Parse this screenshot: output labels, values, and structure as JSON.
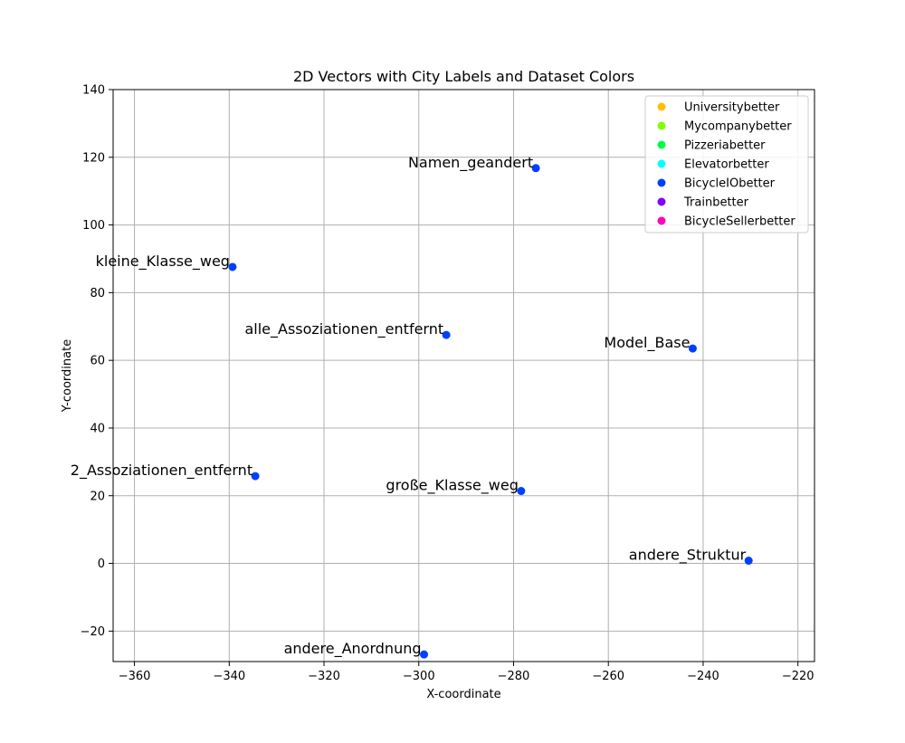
{
  "chart_data": {
    "type": "scatter",
    "title": "2D Vectors with City Labels and Dataset Colors",
    "xlabel": "X-coordinate",
    "ylabel": "Y-coordinate",
    "xlim": [
      -364.5,
      -216.5
    ],
    "ylim": [
      -29,
      140
    ],
    "xticks": [
      -360,
      -340,
      -320,
      -300,
      -280,
      -260,
      -240,
      -220
    ],
    "yticks": [
      -20,
      0,
      20,
      40,
      60,
      80,
      100,
      120,
      140
    ],
    "grid": true,
    "legend_position": "top-right",
    "legend": [
      {
        "name": "Universitybetter",
        "color": "#ffbf00"
      },
      {
        "name": "Mycompanybetter",
        "color": "#80ff00"
      },
      {
        "name": "Pizzeriabetter",
        "color": "#00ff40"
      },
      {
        "name": "Elevatorbetter",
        "color": "#00ffff"
      },
      {
        "name": "BicycleIObetter",
        "color": "#0040ff"
      },
      {
        "name": "Trainbetter",
        "color": "#8000ff"
      },
      {
        "name": "BicycleSellerbetter",
        "color": "#ff00bf"
      }
    ],
    "points": [
      {
        "label": "Namen_geandert",
        "x": -275.3,
        "y": 116.8,
        "color": "#0040ff"
      },
      {
        "label": "kleine_Klasse_weg",
        "x": -339.3,
        "y": 87.6,
        "color": "#0040ff"
      },
      {
        "label": "alle_Assoziationen_entfernt",
        "x": -294.2,
        "y": 67.5,
        "color": "#0040ff"
      },
      {
        "label": "Model_Base",
        "x": -242.2,
        "y": 63.5,
        "color": "#0040ff"
      },
      {
        "label": "2_Assoziationen_entfernt",
        "x": -334.5,
        "y": 25.8,
        "color": "#0040ff"
      },
      {
        "label": "große_Klasse_weg",
        "x": -278.4,
        "y": 21.4,
        "color": "#0040ff"
      },
      {
        "label": "andere_Struktur",
        "x": -230.4,
        "y": 0.8,
        "color": "#0040ff"
      },
      {
        "label": "andere_Anordnung",
        "x": -298.9,
        "y": -26.9,
        "color": "#0040ff"
      }
    ]
  }
}
